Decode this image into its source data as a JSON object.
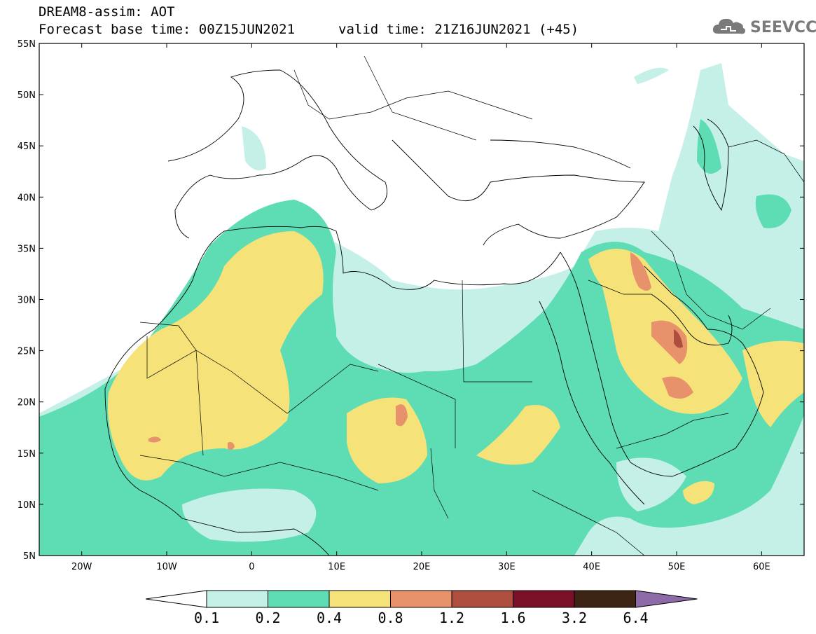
{
  "header": {
    "title": "DREAM8-assim: AOT",
    "base_time": "Forecast base time: 00Z15JUN2021",
    "valid_time": "valid time: 21Z16JUN2021 (+45)"
  },
  "logo": {
    "text": "SEEVCCC",
    "icon": "cloud-icon"
  },
  "map": {
    "variable": "AOT",
    "lat_labels": [
      "55N",
      "50N",
      "45N",
      "40N",
      "35N",
      "30N",
      "25N",
      "20N",
      "15N",
      "10N",
      "5N"
    ],
    "lon_labels": [
      "20W",
      "10W",
      "0",
      "10E",
      "20E",
      "30E",
      "40E",
      "50E",
      "60E"
    ],
    "lat_range": [
      5,
      55
    ],
    "lon_range": [
      -25,
      65
    ]
  },
  "colorbar": {
    "levels": [
      "0.1",
      "0.2",
      "0.4",
      "0.8",
      "1.2",
      "1.6",
      "3.2",
      "6.4"
    ],
    "colors": [
      "#ffffff",
      "#c4f0e8",
      "#5edcb4",
      "#f5e37a",
      "#e8926b",
      "#ad4e3e",
      "#7a0f28",
      "#3d2516",
      "#8d6aa8"
    ]
  }
}
